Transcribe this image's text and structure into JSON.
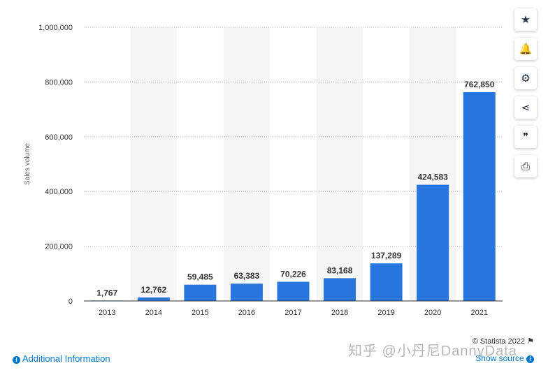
{
  "chart_data": {
    "type": "bar",
    "categories": [
      "2013",
      "2014",
      "2015",
      "2016",
      "2017",
      "2018",
      "2019",
      "2020",
      "2021"
    ],
    "values": [
      1767,
      12762,
      59485,
      63383,
      70226,
      83168,
      137289,
      424583,
      762850
    ],
    "value_labels": [
      "1,767",
      "12,762",
      "59,485",
      "63,383",
      "70,226",
      "83,168",
      "137,289",
      "424,583",
      "762,850"
    ],
    "ylabel": "Sales volume",
    "ylim": [
      0,
      1000000
    ],
    "yticks": [
      0,
      200000,
      400000,
      600000,
      800000,
      1000000
    ],
    "ytick_labels": [
      "0",
      "200,000",
      "400,000",
      "600,000",
      "800,000",
      "1,000,000"
    ],
    "grid": true,
    "bar_color": "#2876dd",
    "alternating_bands": true
  },
  "toolbar": [
    {
      "name": "star-button",
      "icon": "star-icon",
      "glyph": "★"
    },
    {
      "name": "notification-button",
      "icon": "bell-icon",
      "glyph": "🔔"
    },
    {
      "name": "settings-button",
      "icon": "gear-icon",
      "glyph": "⚙"
    },
    {
      "name": "share-button",
      "icon": "share-icon",
      "glyph": "⋖"
    },
    {
      "name": "cite-button",
      "icon": "quote-icon",
      "glyph": "❞"
    },
    {
      "name": "print-button",
      "icon": "printer-icon",
      "glyph": "⎙"
    }
  ],
  "footer": {
    "additional_info": "Additional Information",
    "credit": "© Statista 2022",
    "show_source": "Show source",
    "watermark": "知乎 @小丹尼DannyData"
  },
  "colors": {
    "accent": "#0077cc",
    "bar": "#2876dd"
  }
}
